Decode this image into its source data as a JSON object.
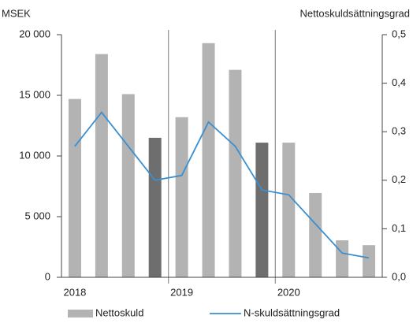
{
  "chart_data": {
    "type": "bar_line",
    "y_label": "MSEK",
    "y2_label": "Nettoskuldsättningsgrad",
    "categories": [
      "2018",
      null,
      null,
      null,
      "2019",
      null,
      null,
      null,
      "2020",
      null,
      null,
      null
    ],
    "series": [
      {
        "name": "Nettoskuld",
        "type": "bar",
        "color": "#b3b3b3",
        "colors": [
          "#b3b3b3",
          "#b3b3b3",
          "#b3b3b3",
          "#6e6e6e",
          "#b3b3b3",
          "#b3b3b3",
          "#b3b3b3",
          "#6e6e6e",
          "#b3b3b3",
          "#b3b3b3",
          "#b3b3b3",
          "#b3b3b3"
        ],
        "values": [
          14700,
          18400,
          15100,
          11500,
          13200,
          19300,
          17100,
          11100,
          11100,
          6950,
          3050,
          2650
        ]
      },
      {
        "name": "N-skuldsättningsgrad",
        "type": "line",
        "axis": "y2",
        "color": "#3a8fd0",
        "values": [
          0.27,
          0.34,
          0.27,
          0.2,
          0.21,
          0.32,
          0.27,
          0.18,
          0.17,
          0.11,
          0.05,
          0.04
        ]
      }
    ],
    "ylim": [
      0,
      20000
    ],
    "yticks": [
      0,
      {
        "value": 5000,
        "label": "5 000"
      },
      {
        "value": 10000,
        "label": "10 000"
      },
      {
        "value": 15000,
        "label": "15 000"
      },
      {
        "value": 20000,
        "label": "20 000"
      }
    ],
    "y2lim": [
      0,
      0.5
    ],
    "y2ticks": [
      {
        "value": 0,
        "label": "0,0"
      },
      {
        "value": 0.1,
        "label": "0,1"
      },
      {
        "value": 0.2,
        "label": "0,2"
      },
      {
        "value": 0.3,
        "label": "0,3"
      },
      {
        "value": 0.4,
        "label": "0,4"
      },
      {
        "value": 0.5,
        "label": "0,5"
      }
    ],
    "legend": "bottom"
  }
}
